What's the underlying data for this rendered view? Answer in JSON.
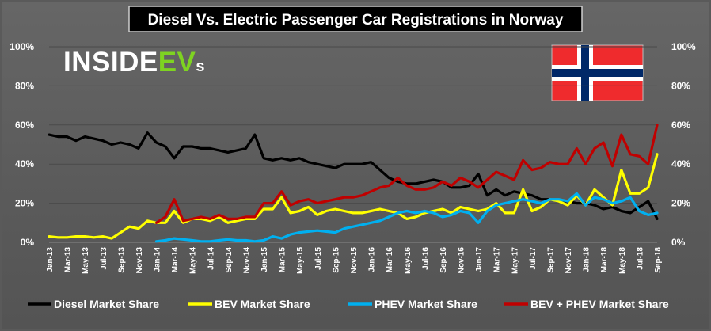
{
  "chart_data": {
    "type": "line",
    "title": "Diesel Vs. Electric Passenger Car Registrations in Norway",
    "logo_text": {
      "main": "INSIDE",
      "accent": "EV",
      "small": "s"
    },
    "y_ticks": [
      "0%",
      "20%",
      "40%",
      "60%",
      "80%",
      "100%"
    ],
    "ylim": [
      0,
      100
    ],
    "x_tick_labels": [
      "Jan-13",
      "Mar-13",
      "May-13",
      "Jul-13",
      "Sep-13",
      "Nov-13",
      "Jan-14",
      "Mar-14",
      "May-14",
      "Jul-14",
      "Sep-14",
      "Nov-14",
      "Jan-15",
      "Mar-15",
      "May-15",
      "Jul-15",
      "Sep-15",
      "Nov-15",
      "Jan-16",
      "Mar-16",
      "May-16",
      "Jul-16",
      "Sep-16",
      "Nov-16",
      "Jan-17",
      "Mar-17",
      "May-17",
      "Jul-17",
      "Sep-17",
      "Nov-17",
      "Jan-18",
      "Mar-18",
      "May-18",
      "Jul-18",
      "Sep-18"
    ],
    "x": [
      "Jan-13",
      "Feb-13",
      "Mar-13",
      "Apr-13",
      "May-13",
      "Jun-13",
      "Jul-13",
      "Aug-13",
      "Sep-13",
      "Oct-13",
      "Nov-13",
      "Dec-13",
      "Jan-14",
      "Feb-14",
      "Mar-14",
      "Apr-14",
      "May-14",
      "Jun-14",
      "Jul-14",
      "Aug-14",
      "Sep-14",
      "Oct-14",
      "Nov-14",
      "Dec-14",
      "Jan-15",
      "Feb-15",
      "Mar-15",
      "Apr-15",
      "May-15",
      "Jun-15",
      "Jul-15",
      "Aug-15",
      "Sep-15",
      "Oct-15",
      "Nov-15",
      "Dec-15",
      "Jan-16",
      "Feb-16",
      "Mar-16",
      "Apr-16",
      "May-16",
      "Jun-16",
      "Jul-16",
      "Aug-16",
      "Sep-16",
      "Oct-16",
      "Nov-16",
      "Dec-16",
      "Jan-17",
      "Feb-17",
      "Mar-17",
      "Apr-17",
      "May-17",
      "Jun-17",
      "Jul-17",
      "Aug-17",
      "Sep-17",
      "Oct-17",
      "Nov-17",
      "Dec-17",
      "Jan-18",
      "Feb-18",
      "Mar-18",
      "Apr-18",
      "May-18",
      "Jun-18",
      "Jul-18",
      "Aug-18",
      "Sep-18"
    ],
    "series": [
      {
        "name": "Diesel Market Share",
        "color": "#000000",
        "values": [
          55,
          54,
          54,
          52,
          54,
          53,
          52,
          50,
          51,
          50,
          48,
          56,
          51,
          49,
          43,
          49,
          49,
          48,
          48,
          47,
          46,
          47,
          48,
          55,
          43,
          42,
          43,
          42,
          43,
          41,
          40,
          39,
          38,
          40,
          40,
          40,
          41,
          37,
          33,
          31,
          30,
          30,
          31,
          32,
          31,
          28,
          28,
          29,
          35,
          24,
          27,
          24,
          26,
          25,
          24,
          22,
          22,
          21,
          21,
          20,
          20,
          19,
          17,
          18,
          16,
          15,
          18,
          21,
          12
        ]
      },
      {
        "name": "BEV Market Share",
        "color": "#ffff00",
        "values": [
          3,
          2.5,
          2.5,
          3,
          3,
          2.5,
          3,
          2,
          5,
          8,
          7,
          11,
          10,
          10,
          16,
          10,
          12,
          12,
          11,
          13,
          10,
          11,
          12,
          12,
          17,
          17,
          23,
          15,
          16,
          18,
          14,
          16,
          17,
          16,
          15,
          15,
          16,
          17,
          16,
          15,
          12,
          13,
          15,
          16,
          17,
          15,
          18,
          17,
          16,
          17,
          20,
          15,
          15,
          27,
          16,
          18,
          22,
          21,
          19,
          24,
          19,
          27,
          23,
          19,
          37,
          25,
          25,
          28,
          45
        ]
      },
      {
        "name": "PHEV Market Share",
        "color": "#00b0f0",
        "values": [
          null,
          null,
          null,
          null,
          null,
          null,
          null,
          null,
          null,
          null,
          null,
          null,
          0.5,
          1,
          2,
          1.5,
          1,
          0.5,
          0.5,
          1,
          1.5,
          1,
          1,
          0.5,
          1,
          3,
          2,
          4,
          5,
          5.5,
          6,
          5.5,
          5,
          7,
          8,
          9,
          10,
          11,
          13,
          15,
          16,
          15,
          16,
          15,
          13,
          14,
          16,
          15,
          10,
          16,
          19,
          20,
          21,
          22,
          21,
          20,
          22,
          22,
          21,
          25,
          19,
          23,
          22,
          20,
          21,
          23,
          16,
          14,
          15
        ]
      },
      {
        "name": "BEV + PHEV Market Share",
        "color": "#c00000",
        "values": [
          null,
          null,
          null,
          null,
          null,
          null,
          null,
          null,
          null,
          null,
          null,
          null,
          10,
          13,
          22,
          11,
          12,
          13,
          12,
          14,
          12,
          12,
          13,
          13,
          20,
          20,
          26,
          19,
          21,
          22,
          20,
          21,
          22,
          23,
          23,
          24,
          26,
          28,
          29,
          33,
          29,
          27,
          27,
          28,
          31,
          29,
          33,
          31,
          28,
          32,
          36,
          34,
          32,
          42,
          37,
          38,
          41,
          40,
          40,
          48,
          40,
          48,
          51,
          39,
          55,
          45,
          44,
          40,
          60
        ]
      }
    ]
  }
}
